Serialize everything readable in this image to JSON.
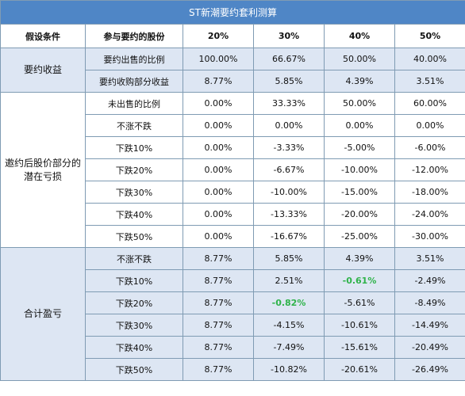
{
  "title": "ST新潮要约套利测算",
  "header": {
    "col1": "假设条件",
    "col2": "参与要约的股份",
    "cols": [
      "20%",
      "30%",
      "40%",
      "50%"
    ]
  },
  "groups": [
    {
      "label": "要约收益",
      "shade": true,
      "rows": [
        {
          "label": "要约出售的比例",
          "values": [
            "100.00%",
            "66.67%",
            "50.00%",
            "40.00%"
          ],
          "highlight": [
            false,
            false,
            false,
            false
          ]
        },
        {
          "label": "要约收购部分收益",
          "values": [
            "8.77%",
            "5.85%",
            "4.39%",
            "3.51%"
          ],
          "highlight": [
            false,
            false,
            false,
            false
          ]
        }
      ]
    },
    {
      "label": "邀约后股价部分的潜在亏损",
      "shade": false,
      "rows": [
        {
          "label": "未出售的比例",
          "values": [
            "0.00%",
            "33.33%",
            "50.00%",
            "60.00%"
          ],
          "highlight": [
            false,
            false,
            false,
            false
          ]
        },
        {
          "label": "不涨不跌",
          "values": [
            "0.00%",
            "0.00%",
            "0.00%",
            "0.00%"
          ],
          "highlight": [
            false,
            false,
            false,
            false
          ]
        },
        {
          "label": "下跌10%",
          "values": [
            "0.00%",
            "-3.33%",
            "-5.00%",
            "-6.00%"
          ],
          "highlight": [
            false,
            false,
            false,
            false
          ]
        },
        {
          "label": "下跌20%",
          "values": [
            "0.00%",
            "-6.67%",
            "-10.00%",
            "-12.00%"
          ],
          "highlight": [
            false,
            false,
            false,
            false
          ]
        },
        {
          "label": "下跌30%",
          "values": [
            "0.00%",
            "-10.00%",
            "-15.00%",
            "-18.00%"
          ],
          "highlight": [
            false,
            false,
            false,
            false
          ]
        },
        {
          "label": "下跌40%",
          "values": [
            "0.00%",
            "-13.33%",
            "-20.00%",
            "-24.00%"
          ],
          "highlight": [
            false,
            false,
            false,
            false
          ]
        },
        {
          "label": "下跌50%",
          "values": [
            "0.00%",
            "-16.67%",
            "-25.00%",
            "-30.00%"
          ],
          "highlight": [
            false,
            false,
            false,
            false
          ]
        }
      ]
    },
    {
      "label": "合计盈亏",
      "shade": true,
      "rows": [
        {
          "label": "不涨不跌",
          "values": [
            "8.77%",
            "5.85%",
            "4.39%",
            "3.51%"
          ],
          "highlight": [
            false,
            false,
            false,
            false
          ]
        },
        {
          "label": "下跌10%",
          "values": [
            "8.77%",
            "2.51%",
            "-0.61%",
            "-2.49%"
          ],
          "highlight": [
            false,
            false,
            true,
            false
          ]
        },
        {
          "label": "下跌20%",
          "values": [
            "8.77%",
            "-0.82%",
            "-5.61%",
            "-8.49%"
          ],
          "highlight": [
            false,
            true,
            false,
            false
          ]
        },
        {
          "label": "下跌30%",
          "values": [
            "8.77%",
            "-4.15%",
            "-10.61%",
            "-14.49%"
          ],
          "highlight": [
            false,
            false,
            false,
            false
          ]
        },
        {
          "label": "下跌40%",
          "values": [
            "8.77%",
            "-7.49%",
            "-15.61%",
            "-20.49%"
          ],
          "highlight": [
            false,
            false,
            false,
            false
          ]
        },
        {
          "label": "下跌50%",
          "values": [
            "8.77%",
            "-10.82%",
            "-20.61%",
            "-26.49%"
          ],
          "highlight": [
            false,
            false,
            false,
            false
          ]
        }
      ]
    }
  ],
  "colors": {
    "title_bg": "#4f86c6",
    "shade_bg": "#dde6f3",
    "border": "#7f9bb3",
    "highlight_text": "#2fb34a"
  }
}
